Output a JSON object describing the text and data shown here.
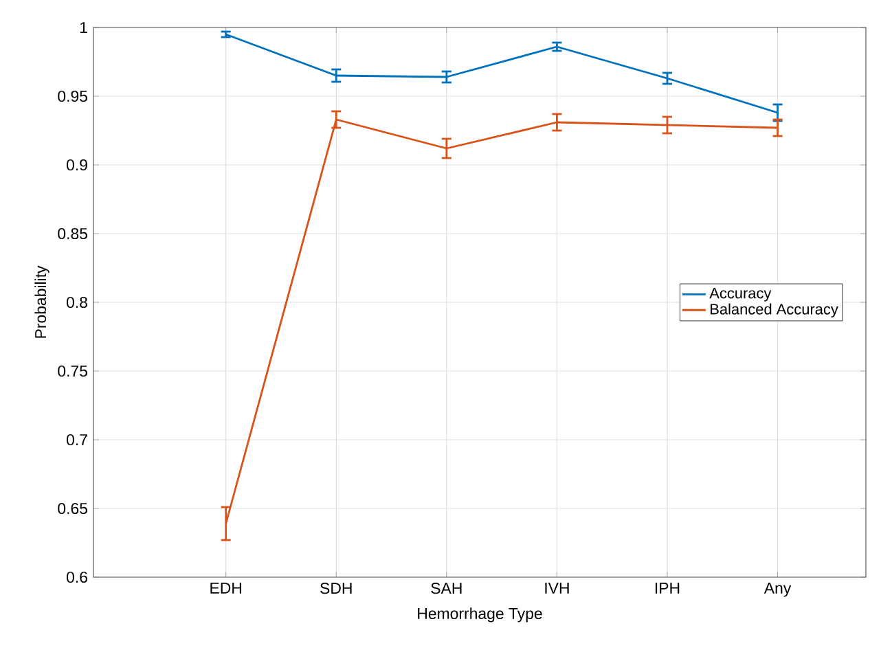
{
  "chart_data": {
    "type": "line",
    "xlabel": "Hemorrhage Type",
    "ylabel": "Probability",
    "categories": [
      "EDH",
      "SDH",
      "SAH",
      "IVH",
      "IPH",
      "Any"
    ],
    "series": [
      {
        "name": "Accuracy",
        "color": "#0072bd",
        "values": [
          0.995,
          0.965,
          0.964,
          0.986,
          0.963,
          0.938
        ],
        "errors": [
          0.002,
          0.0045,
          0.004,
          0.003,
          0.004,
          0.006
        ]
      },
      {
        "name": "Balanced Accuracy",
        "color": "#d95319",
        "values": [
          0.639,
          0.933,
          0.912,
          0.931,
          0.929,
          0.927
        ],
        "errors": [
          0.012,
          0.006,
          0.007,
          0.006,
          0.006,
          0.006
        ]
      }
    ],
    "ylim": [
      0.6,
      1
    ],
    "yticks": [
      0.6,
      0.65,
      0.7,
      0.75,
      0.8,
      0.85,
      0.9,
      0.95,
      1
    ],
    "grid": true,
    "legend": "right",
    "marker": "none",
    "line_style": "solid"
  }
}
